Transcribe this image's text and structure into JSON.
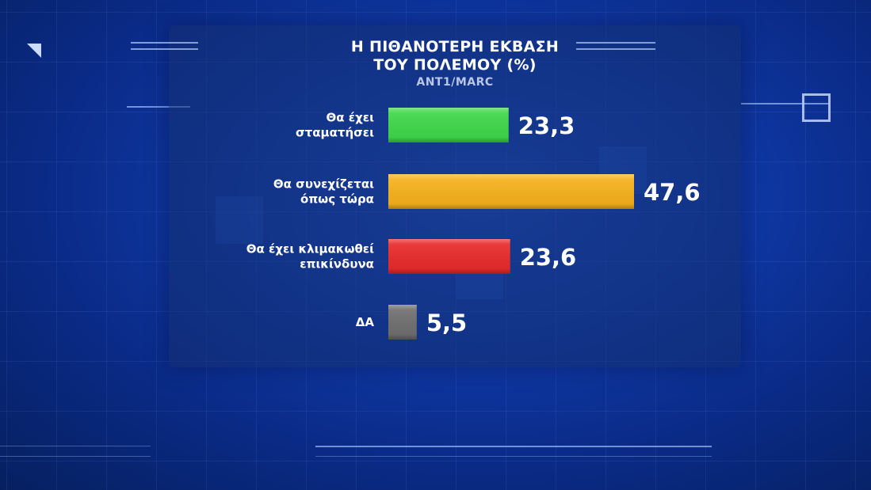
{
  "chart_data": {
    "type": "bar",
    "orientation": "horizontal",
    "title_lines": [
      "Η ΠΙΘΑΝΟΤΕΡΗ ΕΚΒΑΣΗ",
      "ΤΟΥ ΠΟΛΕΜΟΥ (%)"
    ],
    "source": "ANT1/MARC",
    "categories": [
      [
        "Θα έχει",
        "σταματήσει"
      ],
      [
        "Θα συνεχίζεται",
        "όπως τώρα"
      ],
      [
        "Θα έχει κλιμακωθεί",
        "επικίνδυνα"
      ],
      [
        "ΔΑ"
      ]
    ],
    "values": [
      23.3,
      47.6,
      23.6,
      5.5
    ],
    "value_labels": [
      "23,3",
      "47,6",
      "23,6",
      "5,5"
    ],
    "colors": [
      "#3fd84a",
      "#f6b21c",
      "#e82b2b",
      "#6f6f6f"
    ],
    "xlim": [
      0,
      47.6
    ],
    "grid": false
  }
}
